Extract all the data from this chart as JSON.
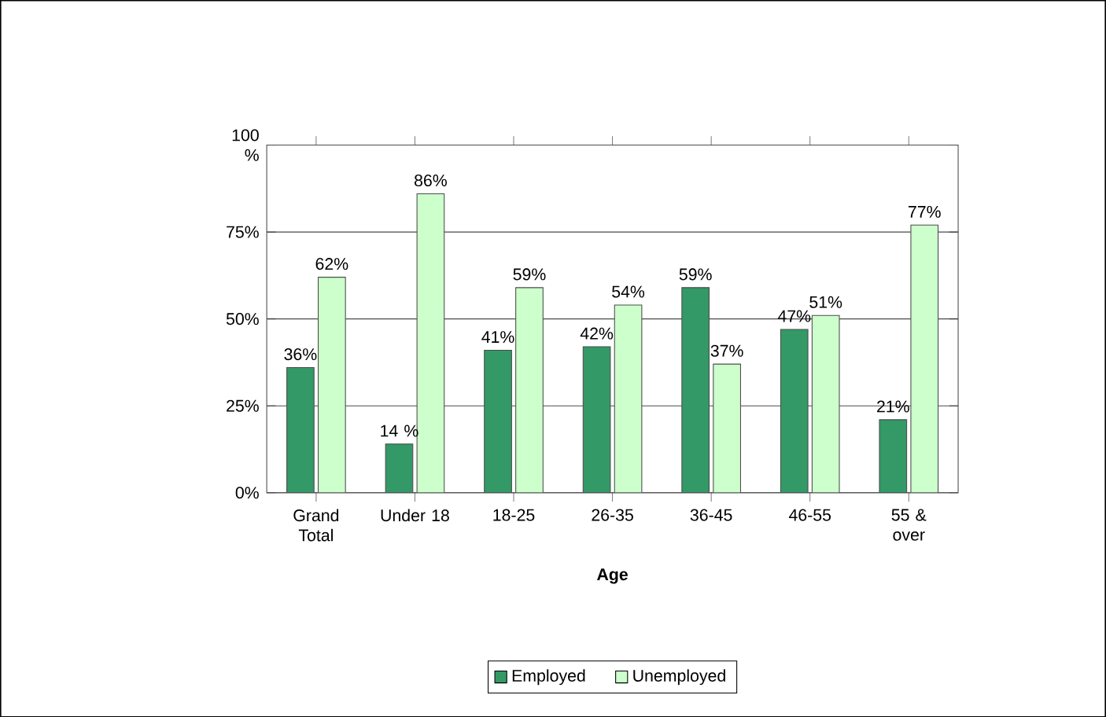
{
  "chart_data": {
    "type": "bar",
    "xlabel": "Age",
    "categories": [
      "Grand Total",
      "Under 18",
      "18-25",
      "26-35",
      "36-45",
      "46-55",
      "55 & over"
    ],
    "series": [
      {
        "name": "Employed",
        "color": "#339966",
        "values": [
          36,
          14,
          41,
          42,
          59,
          47,
          21
        ],
        "value_labels": [
          "36%",
          "14 %",
          "41%",
          "42%",
          "59%",
          "47%",
          "21%"
        ]
      },
      {
        "name": "Unemployed",
        "color": "#ccffcc",
        "values": [
          62,
          86,
          59,
          54,
          37,
          51,
          77
        ],
        "value_labels": [
          "62%",
          "86%",
          "59%",
          "54%",
          "37%",
          "51%",
          "77%"
        ]
      }
    ],
    "ylim": [
      0,
      100
    ],
    "yticks": [
      {
        "value": 0,
        "label": "0%"
      },
      {
        "value": 25,
        "label": "25%"
      },
      {
        "value": 50,
        "label": "50%"
      },
      {
        "value": 75,
        "label": "75%"
      },
      {
        "value": 100,
        "label": "100 %"
      }
    ],
    "grid": "y",
    "legend": "bottom"
  }
}
